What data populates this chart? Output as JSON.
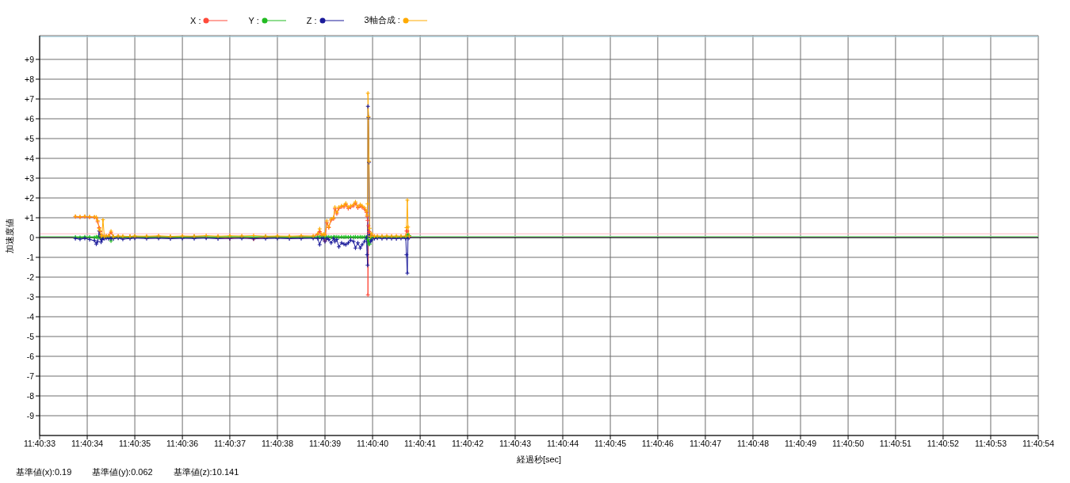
{
  "chart_data": {
    "type": "line",
    "xlabel": "経過秒[sec]",
    "ylabel": "加速度値",
    "annotations": [
      "基準値(x):0.19",
      "基準値(y):0.062",
      "基準値(z):10.141"
    ],
    "x": [
      11.676042,
      11.676069,
      11.676097,
      11.676125,
      11.676153,
      11.676164,
      11.676172,
      11.676181,
      11.676186,
      11.676192,
      11.676197,
      11.676203,
      11.676211,
      11.676222,
      11.676236,
      11.67625,
      11.676264,
      11.676292,
      11.676319,
      11.676361,
      11.676389,
      11.676458,
      11.676528,
      11.676597,
      11.676667,
      11.676736,
      11.676806,
      11.676875,
      11.676944,
      11.677014,
      11.677083,
      11.677153,
      11.677222,
      11.677292,
      11.677361,
      11.677431,
      11.677458,
      11.677469,
      11.677481,
      11.677492,
      11.6775,
      11.677511,
      11.677522,
      11.677536,
      11.67755,
      11.677558,
      11.677569,
      11.677581,
      11.677597,
      11.677611,
      11.677622,
      11.677636,
      11.67765,
      11.677667,
      11.677678,
      11.677692,
      11.677706,
      11.677717,
      11.677731,
      11.677742,
      11.677746,
      11.677749,
      11.677751,
      11.677754,
      11.677757,
      11.677761,
      11.677767,
      11.677772,
      11.677789,
      11.677806,
      11.677833,
      11.677861,
      11.677889,
      11.677917,
      11.677944,
      11.677972,
      11.677976,
      11.677981,
      11.677985,
      11.677992
    ],
    "series": [
      {
        "name": "X :",
        "color": "#ff4a3a",
        "values": [
          1.05,
          1.03,
          1.05,
          1.03,
          1.02,
          1.0,
          0.8,
          0.5,
          0.3,
          0.05,
          0.05,
          0.05,
          0.03,
          0.05,
          0.06,
          0.25,
          0.03,
          0.04,
          0.02,
          0.05,
          0.02,
          0.03,
          0.04,
          0.02,
          0.03,
          0.05,
          0.02,
          0.03,
          -0.05,
          0.03,
          -0.08,
          0.02,
          0.03,
          0.02,
          0.04,
          0.03,
          0.15,
          0.3,
          0.1,
          0.12,
          -0.17,
          0.75,
          0.5,
          0.88,
          0.95,
          1.45,
          1.2,
          1.47,
          1.55,
          1.55,
          1.67,
          1.47,
          1.53,
          1.6,
          1.73,
          1.5,
          1.6,
          1.53,
          1.43,
          1.27,
          1.07,
          0.87,
          -2.9,
          0.6,
          0.3,
          0.2,
          0.03,
          0.1,
          0.03,
          0.02,
          0.03,
          0.02,
          0.03,
          0.02,
          0.03,
          0.05,
          0.33,
          0.33,
          0.1,
          0.03
        ]
      },
      {
        "name": "Y :",
        "color": "#22bb22",
        "values": [
          0.02,
          0,
          0.03,
          0.02,
          0,
          0.03,
          0.02,
          0,
          0.05,
          0.02,
          0.02,
          0.03,
          0.02,
          0.03,
          0.02,
          -0.17,
          0.03,
          0.03,
          0.02,
          0.03,
          0.04,
          0.02,
          0.03,
          0.03,
          0.02,
          0.04,
          0.03,
          0.02,
          0.03,
          0.03,
          0.02,
          0.04,
          0.03,
          0.02,
          0.03,
          0.02,
          0.03,
          0.02,
          0.03,
          0.02,
          0,
          0.02,
          0.03,
          0.02,
          0.03,
          0.02,
          0.03,
          0.02,
          0.03,
          0.02,
          0.03,
          0.02,
          0.03,
          0.02,
          0.03,
          0.02,
          0.03,
          0.02,
          0.03,
          0.02,
          0,
          -0.1,
          -0.1,
          -0.33,
          -0.2,
          -0.33,
          -0.1,
          0.02,
          0.03,
          0.02,
          0.03,
          0.02,
          0.03,
          0.02,
          0.03,
          0.02,
          0.05,
          0.1,
          0.13,
          0.1
        ]
      },
      {
        "name": "Z :",
        "color": "#1a1a9a",
        "values": [
          -0.05,
          -0.08,
          -0.04,
          -0.1,
          -0.15,
          -0.33,
          -0.2,
          0.33,
          0.05,
          -0.23,
          -0.1,
          -0.05,
          -0.05,
          -0.03,
          -0.05,
          -0.05,
          -0.06,
          -0.03,
          -0.08,
          -0.05,
          -0.03,
          -0.05,
          -0.04,
          -0.06,
          -0.04,
          -0.05,
          -0.03,
          -0.06,
          -0.05,
          -0.04,
          -0.06,
          -0.05,
          -0.04,
          -0.06,
          -0.05,
          -0.04,
          -0.05,
          -0.36,
          -0.05,
          -0.05,
          -0.2,
          -0.05,
          -0.1,
          -0.27,
          -0.05,
          -0.2,
          -0.1,
          -0.47,
          -0.27,
          -0.33,
          -0.36,
          -0.27,
          -0.13,
          -0.2,
          -0.53,
          -0.27,
          -0.53,
          -0.36,
          -0.2,
          0,
          -0.87,
          -1.4,
          6.63,
          6.07,
          3.8,
          0.13,
          -0.2,
          -0.13,
          -0.05,
          -0.03,
          -0.05,
          -0.04,
          -0.05,
          -0.06,
          -0.04,
          -0.05,
          -0.87,
          -1.8,
          -0.05,
          0
        ]
      },
      {
        "name": "3軸合成 :",
        "color": "#ffaa00",
        "values": [
          1.07,
          1.05,
          1.07,
          1.05,
          1.04,
          1.03,
          0.85,
          0.45,
          0.35,
          0.08,
          0.1,
          0.9,
          0.05,
          0.08,
          0.1,
          0.32,
          0.05,
          0.08,
          0.07,
          0.06,
          0.08,
          0.07,
          0.09,
          0.06,
          0.08,
          0.07,
          0.1,
          0.07,
          0.09,
          0.08,
          0.1,
          0.07,
          0.08,
          0.07,
          0.09,
          0.08,
          0.2,
          0.44,
          0.15,
          0.17,
          0.15,
          0.84,
          0.53,
          0.93,
          1.0,
          1.53,
          1.27,
          1.53,
          1.6,
          1.62,
          1.73,
          1.53,
          1.6,
          1.67,
          1.8,
          1.56,
          1.67,
          1.6,
          1.5,
          1.33,
          1.13,
          1.7,
          7.29,
          6.1,
          3.85,
          0.47,
          0.07,
          0.2,
          0.07,
          0.08,
          0.07,
          0.08,
          0.07,
          0.08,
          0.07,
          0.08,
          0.5,
          1.89,
          0.53,
          0.07
        ]
      }
    ],
    "xlim": [
      11.675833,
      11.681667
    ],
    "xticks": [
      {
        "value": 11.675833,
        "label": "11:40:33"
      },
      {
        "value": 11.676111,
        "label": "11:40:34"
      },
      {
        "value": 11.676389,
        "label": "11:40:35"
      },
      {
        "value": 11.676667,
        "label": "11:40:36"
      },
      {
        "value": 11.676944,
        "label": "11:40:37"
      },
      {
        "value": 11.677222,
        "label": "11:40:38"
      },
      {
        "value": 11.6775,
        "label": "11:40:39"
      },
      {
        "value": 11.677778,
        "label": "11:40:40"
      },
      {
        "value": 11.678056,
        "label": "11:40:41"
      },
      {
        "value": 11.678333,
        "label": "11:40:42"
      },
      {
        "value": 11.678611,
        "label": "11:40:43"
      },
      {
        "value": 11.678889,
        "label": "11:40:44"
      },
      {
        "value": 11.679167,
        "label": "11:40:45"
      },
      {
        "value": 11.679444,
        "label": "11:40:46"
      },
      {
        "value": 11.679722,
        "label": "11:40:47"
      },
      {
        "value": 11.68,
        "label": "11:40:48"
      },
      {
        "value": 11.680278,
        "label": "11:40:49"
      },
      {
        "value": 11.680556,
        "label": "11:40:50"
      },
      {
        "value": 11.680833,
        "label": "11:40:51"
      },
      {
        "value": 11.681111,
        "label": "11:40:52"
      },
      {
        "value": 11.681389,
        "label": "11:40:53"
      },
      {
        "value": 11.681667,
        "label": "11:40:54"
      }
    ],
    "ylim": [
      -10,
      10.2
    ],
    "yticks": [
      {
        "value": 9,
        "label": "+9"
      },
      {
        "value": 8,
        "label": "+8"
      },
      {
        "value": 7,
        "label": "+7"
      },
      {
        "value": 6,
        "label": "+6"
      },
      {
        "value": 5,
        "label": "+5"
      },
      {
        "value": 4,
        "label": "+4"
      },
      {
        "value": 3,
        "label": "+3"
      },
      {
        "value": 2,
        "label": "+2"
      },
      {
        "value": 1,
        "label": "+1"
      },
      0,
      -1,
      -2,
      -3,
      -4,
      -5,
      -6,
      -7,
      -8,
      -9
    ],
    "ref_lines": [
      {
        "axis": "y",
        "value": 0.19,
        "color": "#ffb6c1"
      },
      {
        "axis": "y",
        "value": 0.062,
        "color": "#90ee90"
      },
      {
        "axis": "y",
        "value": 10.141,
        "color": "#add8e6"
      },
      {
        "axis": "y",
        "value": 0,
        "color": "#000000"
      }
    ],
    "grid": true,
    "legend": "top left",
    "marker": "cross",
    "line_style": "solid"
  }
}
